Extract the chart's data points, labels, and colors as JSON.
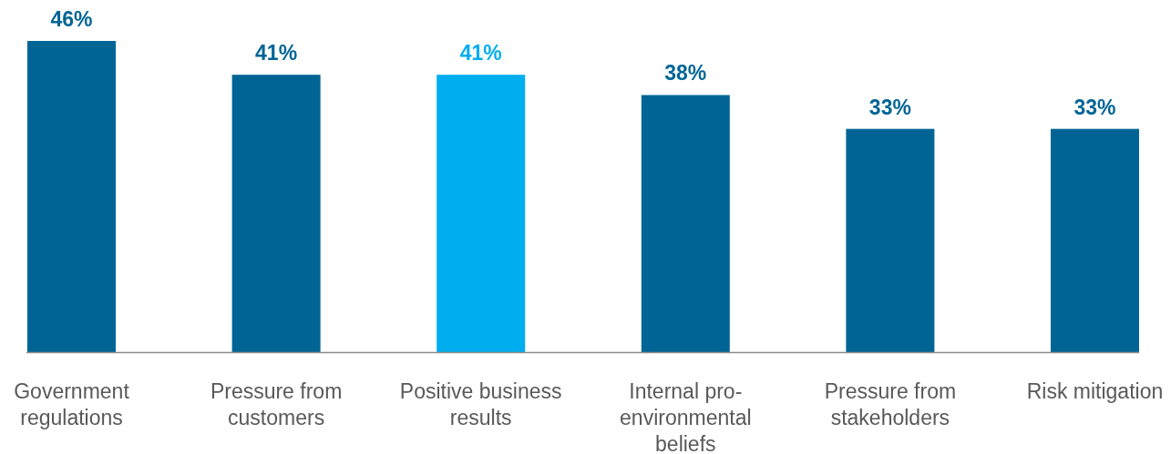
{
  "chart_data": {
    "type": "bar",
    "categories": [
      "Government regulations",
      "Pressure from customers",
      "Positive business results",
      "Internal pro-environmental beliefs",
      "Pressure from stakeholders",
      "Risk mitigation"
    ],
    "values": [
      46,
      41,
      41,
      38,
      33,
      33
    ],
    "colors": [
      "#006595",
      "#006595",
      "#00aeef",
      "#006595",
      "#006595",
      "#006595"
    ],
    "value_labels": [
      "46%",
      "41%",
      "41%",
      "38%",
      "33%",
      "33%"
    ]
  }
}
